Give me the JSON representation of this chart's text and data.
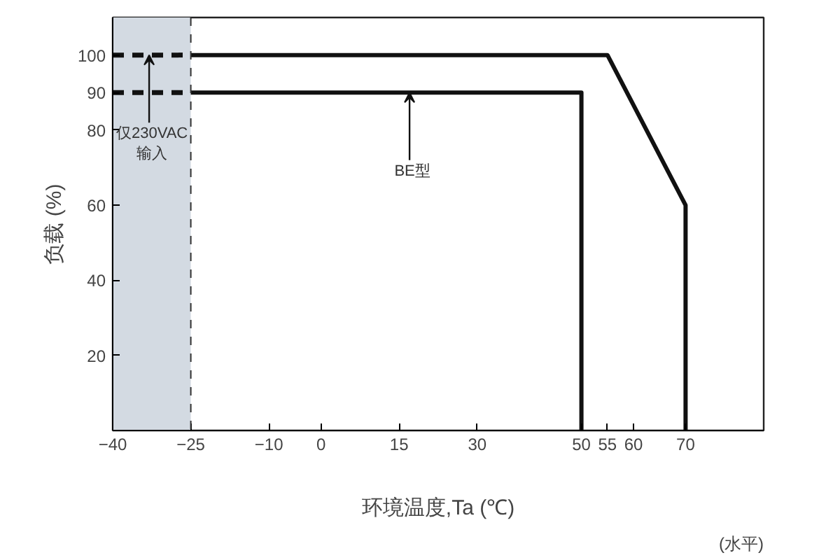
{
  "chart_data": {
    "type": "line",
    "xlabel": "环境温度,Ta (℃)",
    "ylabel": "负载 (%)",
    "xlim": [
      -40,
      85
    ],
    "xticks": [
      -40,
      -25,
      -10,
      0,
      15,
      30,
      50,
      55,
      60,
      70
    ],
    "ylim": [
      0,
      110
    ],
    "yticks": [
      20,
      40,
      60,
      80,
      90,
      100
    ],
    "grid": false,
    "marker": "none",
    "series": [
      {
        "color": "#111111",
        "x": [
          -40,
          -25
        ],
        "values": [
          100,
          100
        ],
        "line_style": "dashed"
      },
      {
        "color": "#111111",
        "x": [
          -25,
          55,
          70,
          70
        ],
        "values": [
          100,
          100,
          60,
          0
        ],
        "line_style": "solid"
      },
      {
        "color": "#111111",
        "x": [
          -40,
          -25
        ],
        "values": [
          90,
          90
        ],
        "line_style": "dashed"
      },
      {
        "color": "#111111",
        "x": [
          -25,
          50,
          50
        ],
        "values": [
          90,
          90,
          0
        ],
        "line_style": "solid"
      }
    ],
    "bands": [
      {
        "axis": "x",
        "from": -40,
        "to": -25,
        "color": "#d3dae2"
      }
    ],
    "ref_lines": [
      {
        "axis": "x",
        "value": -25,
        "color": "#333333",
        "line_style": "dashed"
      }
    ],
    "annotations": [
      {
        "text": "仅230VAC\n输入",
        "x": -33,
        "y": 100
      },
      {
        "text": "BE型",
        "x": 17,
        "y": 90
      },
      "(水平)"
    ]
  }
}
